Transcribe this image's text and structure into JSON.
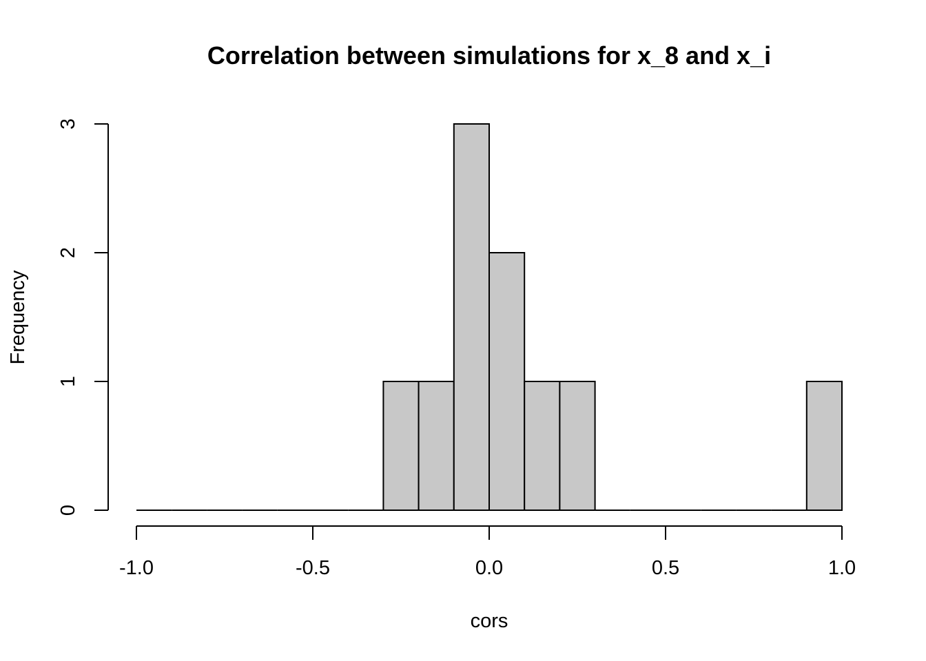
{
  "chart_data": {
    "type": "bar",
    "title": "Correlation between simulations for x_8 and x_i",
    "xlabel": "cors",
    "ylabel": "Frequency",
    "xlim": [
      -1.0,
      1.0
    ],
    "ylim": [
      0,
      3
    ],
    "bar_color": "#c8c8c8",
    "grid": false,
    "x_ticks": [
      "-1.0",
      "-0.5",
      "0.0",
      "0.5",
      "1.0"
    ],
    "y_ticks": [
      "0",
      "1",
      "2",
      "3"
    ],
    "bins": [
      {
        "from": -1.0,
        "to": -0.9,
        "count": 0
      },
      {
        "from": -0.9,
        "to": -0.8,
        "count": 0
      },
      {
        "from": -0.8,
        "to": -0.7,
        "count": 0
      },
      {
        "from": -0.7,
        "to": -0.6,
        "count": 0
      },
      {
        "from": -0.6,
        "to": -0.5,
        "count": 0
      },
      {
        "from": -0.5,
        "to": -0.4,
        "count": 0
      },
      {
        "from": -0.4,
        "to": -0.3,
        "count": 0
      },
      {
        "from": -0.3,
        "to": -0.2,
        "count": 1
      },
      {
        "from": -0.2,
        "to": -0.1,
        "count": 1
      },
      {
        "from": -0.1,
        "to": 0.0,
        "count": 3
      },
      {
        "from": 0.0,
        "to": 0.1,
        "count": 2
      },
      {
        "from": 0.1,
        "to": 0.2,
        "count": 1
      },
      {
        "from": 0.2,
        "to": 0.3,
        "count": 1
      },
      {
        "from": 0.3,
        "to": 0.4,
        "count": 0
      },
      {
        "from": 0.4,
        "to": 0.5,
        "count": 0
      },
      {
        "from": 0.5,
        "to": 0.6,
        "count": 0
      },
      {
        "from": 0.6,
        "to": 0.7,
        "count": 0
      },
      {
        "from": 0.7,
        "to": 0.8,
        "count": 0
      },
      {
        "from": 0.8,
        "to": 0.9,
        "count": 0
      },
      {
        "from": 0.9,
        "to": 1.0,
        "count": 1
      }
    ]
  }
}
